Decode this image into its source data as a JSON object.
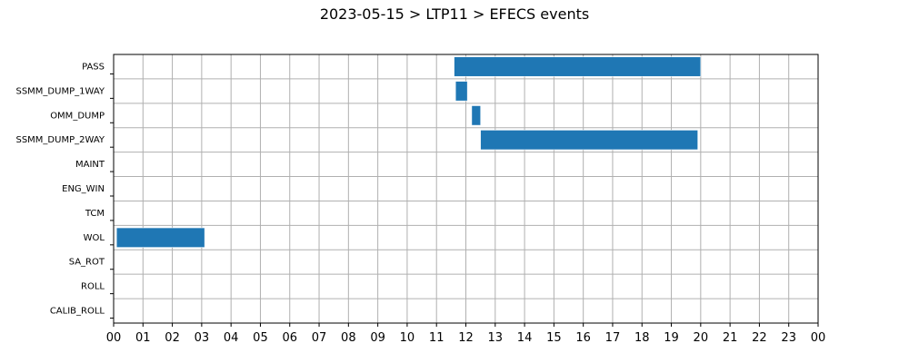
{
  "chart_data": {
    "type": "gantt",
    "title": "2023-05-15 > LTP11 > EFECS events",
    "xlabel": "",
    "ylabel": "",
    "xlim": [
      0,
      24
    ],
    "x_tick_labels": [
      "00",
      "01",
      "02",
      "03",
      "04",
      "05",
      "06",
      "07",
      "08",
      "09",
      "10",
      "11",
      "12",
      "13",
      "14",
      "15",
      "16",
      "17",
      "18",
      "19",
      "20",
      "21",
      "22",
      "23",
      "00"
    ],
    "rows": [
      "PASS",
      "SSMM_DUMP_1WAY",
      "OMM_DUMP",
      "SSMM_DUMP_2WAY",
      "MAINT",
      "ENG_WIN",
      "TCM",
      "WOL",
      "SA_ROT",
      "ROLL",
      "CALIB_ROLL"
    ],
    "series": [
      {
        "values": [
          {
            "row": "PASS",
            "start": 11.6,
            "end": 20.0
          },
          {
            "row": "SSMM_DUMP_1WAY",
            "start": 11.65,
            "end": 12.05
          },
          {
            "row": "OMM_DUMP",
            "start": 12.2,
            "end": 12.5
          },
          {
            "row": "SSMM_DUMP_2WAY",
            "start": 12.5,
            "end": 19.9
          },
          {
            "row": "WOL",
            "start": 0.1,
            "end": 3.1
          }
        ]
      }
    ],
    "bar_color": "#1f77b4",
    "grid": true
  }
}
